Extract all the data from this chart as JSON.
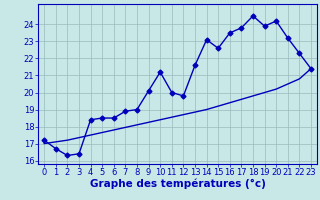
{
  "xlabel": "Graphe des températures (°c)",
  "x": [
    0,
    1,
    2,
    3,
    4,
    5,
    6,
    7,
    8,
    9,
    10,
    11,
    12,
    13,
    14,
    15,
    16,
    17,
    18,
    19,
    20,
    21,
    22,
    23
  ],
  "line1": [
    17.2,
    16.7,
    16.3,
    16.4,
    18.4,
    18.5,
    18.5,
    18.9,
    19.0,
    20.1,
    21.2,
    20.0,
    19.8,
    21.6,
    23.1,
    22.6,
    23.5,
    23.8,
    24.5,
    23.9,
    24.2,
    23.2,
    22.3,
    21.4
  ],
  "line2": [
    17.0,
    17.1,
    17.2,
    17.35,
    17.5,
    17.65,
    17.8,
    17.95,
    18.1,
    18.25,
    18.4,
    18.55,
    18.7,
    18.85,
    19.0,
    19.2,
    19.4,
    19.6,
    19.8,
    20.0,
    20.2,
    20.5,
    20.8,
    21.4
  ],
  "line_color": "#0000bb",
  "bg_color": "#c8e8e8",
  "grid_color": "#99bbbb",
  "ylim": [
    15.8,
    25.2
  ],
  "xlim": [
    -0.5,
    23.5
  ],
  "yticks": [
    16,
    17,
    18,
    19,
    20,
    21,
    22,
    23,
    24
  ],
  "xticks": [
    0,
    1,
    2,
    3,
    4,
    5,
    6,
    7,
    8,
    9,
    10,
    11,
    12,
    13,
    14,
    15,
    16,
    17,
    18,
    19,
    20,
    21,
    22,
    23
  ],
  "marker": "D",
  "markersize": 2.5,
  "linewidth": 1.0,
  "tick_fontsize": 6.0,
  "xlabel_fontsize": 7.5
}
